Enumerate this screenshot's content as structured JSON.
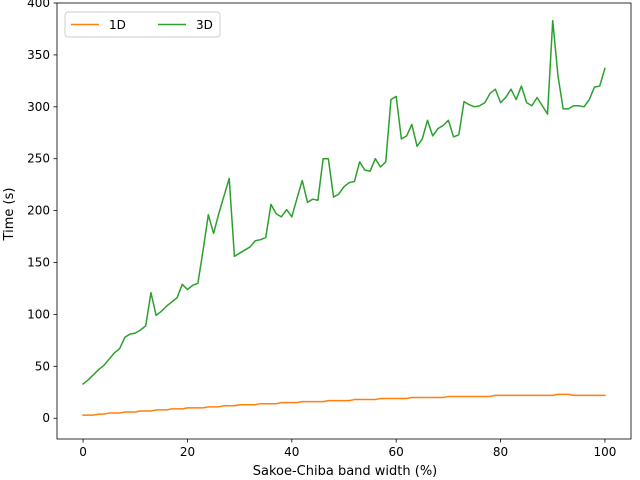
{
  "chart_data": {
    "type": "line",
    "title": "",
    "xlabel": "Sakoe-Chiba band width (%)",
    "ylabel": "Time (s)",
    "xlim": [
      -5,
      105
    ],
    "ylim": [
      -20,
      400
    ],
    "x_ticks": [
      0,
      20,
      40,
      60,
      80,
      100
    ],
    "y_ticks": [
      0,
      50,
      100,
      150,
      200,
      250,
      300,
      350,
      400
    ],
    "grid": false,
    "legend_position": "top-left",
    "x": [
      0,
      1,
      2,
      3,
      4,
      5,
      6,
      7,
      8,
      9,
      10,
      11,
      12,
      13,
      14,
      15,
      16,
      17,
      18,
      19,
      20,
      21,
      22,
      23,
      24,
      25,
      26,
      27,
      28,
      29,
      30,
      31,
      32,
      33,
      34,
      35,
      36,
      37,
      38,
      39,
      40,
      41,
      42,
      43,
      44,
      45,
      46,
      47,
      48,
      49,
      50,
      51,
      52,
      53,
      54,
      55,
      56,
      57,
      58,
      59,
      60,
      61,
      62,
      63,
      64,
      65,
      66,
      67,
      68,
      69,
      70,
      71,
      72,
      73,
      74,
      75,
      76,
      77,
      78,
      79,
      80,
      81,
      82,
      83,
      84,
      85,
      86,
      87,
      88,
      89,
      90,
      91,
      92,
      93,
      94,
      95,
      96,
      97,
      98,
      99,
      100
    ],
    "series": [
      {
        "name": "1D",
        "color": "#ff7f0e",
        "values": [
          3,
          3,
          3,
          4,
          4,
          5,
          5,
          5,
          6,
          6,
          6,
          7,
          7,
          7,
          8,
          8,
          8,
          9,
          9,
          9,
          10,
          10,
          10,
          10,
          11,
          11,
          11,
          12,
          12,
          12,
          13,
          13,
          13,
          13,
          14,
          14,
          14,
          14,
          15,
          15,
          15,
          15,
          16,
          16,
          16,
          16,
          16,
          17,
          17,
          17,
          17,
          17,
          18,
          18,
          18,
          18,
          18,
          19,
          19,
          19,
          19,
          19,
          19,
          20,
          20,
          20,
          20,
          20,
          20,
          20,
          21,
          21,
          21,
          21,
          21,
          21,
          21,
          21,
          21,
          22,
          22,
          22,
          22,
          22,
          22,
          22,
          22,
          22,
          22,
          22,
          22,
          23,
          23,
          23,
          22,
          22,
          22,
          22,
          22,
          22,
          22
        ]
      },
      {
        "name": "3D",
        "color": "#2ca02c",
        "values": [
          33,
          37,
          42,
          47,
          51,
          57,
          63,
          67,
          78,
          81,
          82,
          85,
          89,
          121,
          99,
          103,
          108,
          112,
          116,
          129,
          124,
          128,
          130,
          162,
          196,
          178,
          197,
          214,
          231,
          156,
          159,
          162,
          165,
          171,
          172,
          174,
          206,
          197,
          194,
          201,
          194,
          212,
          229,
          208,
          211,
          210,
          250,
          250,
          213,
          216,
          223,
          227,
          228,
          247,
          239,
          238,
          250,
          242,
          247,
          307,
          310,
          269,
          272,
          283,
          262,
          269,
          287,
          272,
          279,
          282,
          287,
          271,
          273,
          305,
          302,
          300,
          301,
          304,
          313,
          317,
          304,
          309,
          317,
          307,
          320,
          304,
          301,
          309,
          301,
          293,
          383,
          330,
          298,
          298,
          301,
          301,
          300,
          307,
          319,
          320,
          337
        ]
      }
    ]
  }
}
